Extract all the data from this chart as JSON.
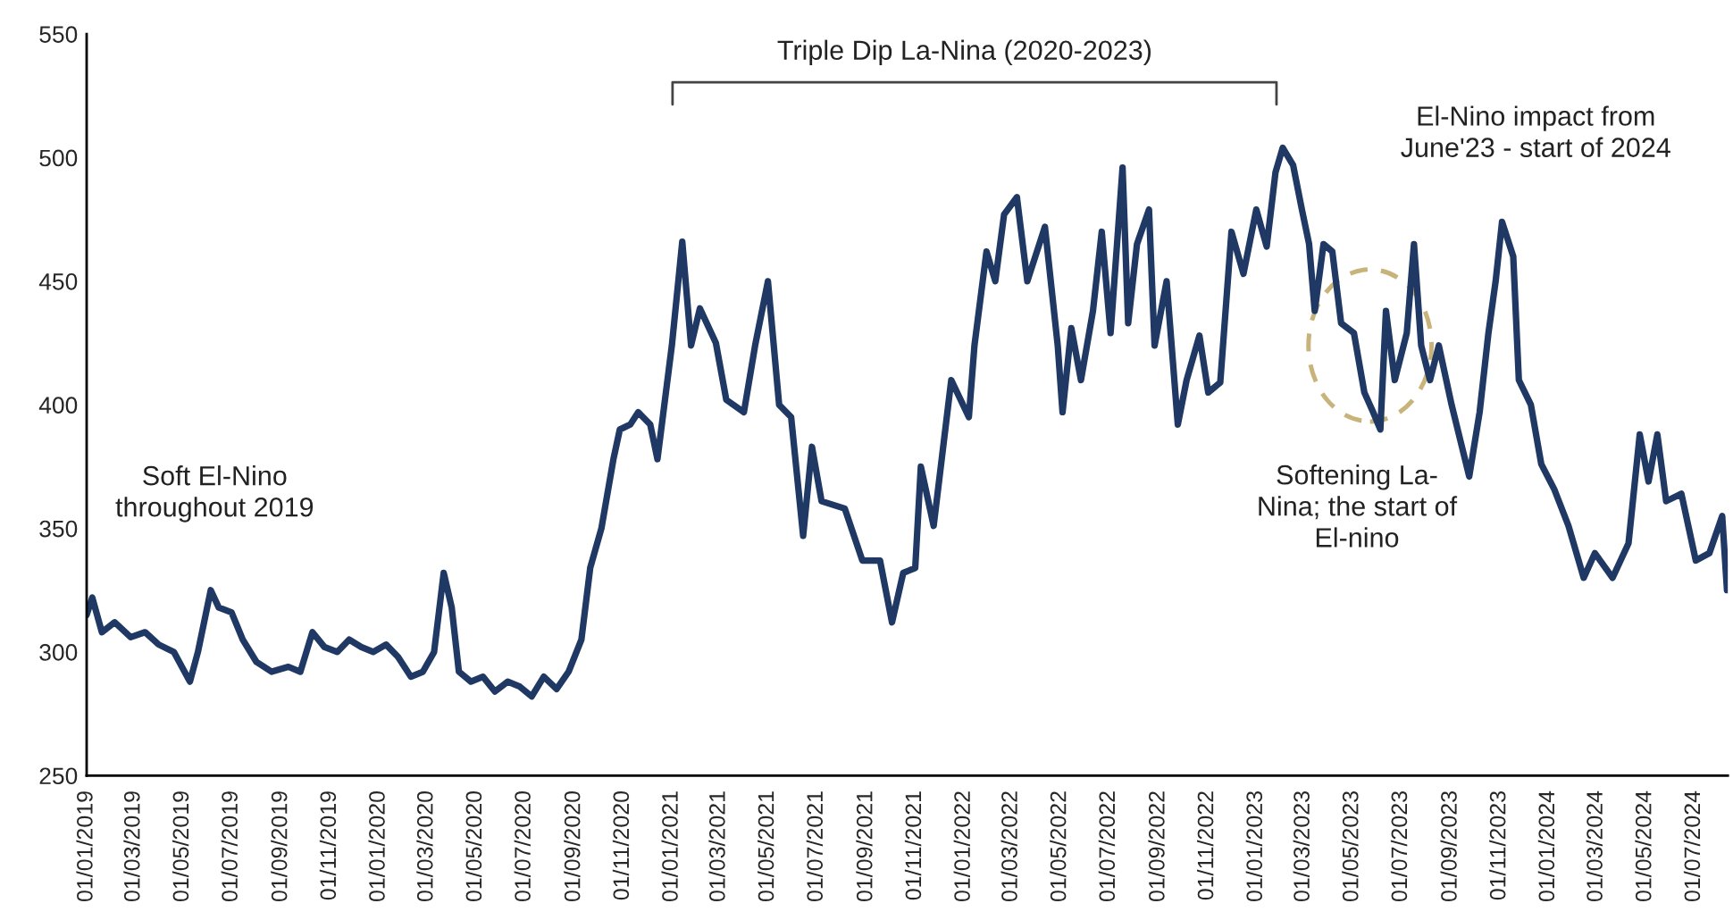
{
  "chart_data": {
    "type": "line",
    "x": [
      "2019-01-01",
      "2019-01-08",
      "2019-01-20",
      "2019-02-05",
      "2019-02-25",
      "2019-03-15",
      "2019-04-01",
      "2019-04-20",
      "2019-05-10",
      "2019-05-20",
      "2019-06-05",
      "2019-06-15",
      "2019-07-01",
      "2019-07-15",
      "2019-08-01",
      "2019-08-20",
      "2019-09-10",
      "2019-09-25",
      "2019-10-10",
      "2019-10-25",
      "2019-11-10",
      "2019-11-25",
      "2019-12-10",
      "2019-12-25",
      "2020-01-10",
      "2020-01-25",
      "2020-02-10",
      "2020-02-25",
      "2020-03-10",
      "2020-03-22",
      "2020-04-01",
      "2020-04-10",
      "2020-04-25",
      "2020-05-10",
      "2020-05-25",
      "2020-06-10",
      "2020-06-25",
      "2020-07-10",
      "2020-07-25",
      "2020-08-10",
      "2020-08-25",
      "2020-09-10",
      "2020-09-21",
      "2020-10-05",
      "2020-10-20",
      "2020-10-28",
      "2020-11-10",
      "2020-11-20",
      "2020-12-05",
      "2020-12-14",
      "2021-01-01",
      "2021-01-14",
      "2021-01-25",
      "2021-02-05",
      "2021-02-25",
      "2021-03-10",
      "2021-04-01",
      "2021-04-15",
      "2021-05-01",
      "2021-05-15",
      "2021-05-30",
      "2021-06-14",
      "2021-06-25",
      "2021-07-07",
      "2021-08-05",
      "2021-08-27",
      "2021-09-18",
      "2021-10-03",
      "2021-10-17",
      "2021-11-01",
      "2021-11-08",
      "2021-11-24",
      "2021-12-16",
      "2022-01-07",
      "2022-01-14",
      "2022-01-29",
      "2022-02-09",
      "2022-02-20",
      "2022-03-08",
      "2022-03-21",
      "2022-04-12",
      "2022-04-28",
      "2022-05-04",
      "2022-05-15",
      "2022-05-27",
      "2022-06-11",
      "2022-06-22",
      "2022-07-03",
      "2022-07-18",
      "2022-07-25",
      "2022-08-05",
      "2022-08-20",
      "2022-08-27",
      "2022-09-11",
      "2022-09-25",
      "2022-10-06",
      "2022-10-22",
      "2022-11-02",
      "2022-11-17",
      "2022-12-01",
      "2022-12-16",
      "2023-01-01",
      "2023-01-14",
      "2023-01-25",
      "2023-02-03",
      "2023-02-16",
      "2023-02-27",
      "2023-03-08",
      "2023-03-15",
      "2023-03-26",
      "2023-04-06",
      "2023-04-17",
      "2023-05-03",
      "2023-05-16",
      "2023-05-27",
      "2023-06-05",
      "2023-06-12",
      "2023-06-23",
      "2023-07-08",
      "2023-07-17",
      "2023-07-26",
      "2023-08-06",
      "2023-08-17",
      "2023-09-02",
      "2023-09-24",
      "2023-10-07",
      "2023-10-18",
      "2023-10-27",
      "2023-11-04",
      "2023-11-18",
      "2023-11-25",
      "2023-12-10",
      "2023-12-23",
      "2024-01-08",
      "2024-01-26",
      "2024-02-14",
      "2024-02-28",
      "2024-03-21",
      "2024-04-10",
      "2024-04-24",
      "2024-05-05",
      "2024-05-16",
      "2024-05-27",
      "2024-06-15",
      "2024-07-03",
      "2024-07-20",
      "2024-08-05",
      "2024-08-11"
    ],
    "series": [
      {
        "color": "#1f3864",
        "values": [
          315,
          322,
          308,
          312,
          306,
          308,
          303,
          300,
          288,
          300,
          325,
          318,
          316,
          305,
          296,
          292,
          294,
          292,
          308,
          302,
          300,
          305,
          302,
          300,
          303,
          298,
          290,
          292,
          300,
          332,
          318,
          292,
          288,
          290,
          284,
          288,
          286,
          282,
          290,
          285,
          292,
          305,
          334,
          350,
          378,
          390,
          392,
          397,
          392,
          378,
          424,
          466,
          424,
          439,
          425,
          402,
          397,
          424,
          450,
          400,
          395,
          347,
          383,
          361,
          358,
          337,
          337,
          312,
          332,
          334,
          375,
          351,
          410,
          395,
          424,
          462,
          450,
          477,
          484,
          450,
          472,
          424,
          397,
          431,
          410,
          438,
          470,
          429,
          496,
          433,
          465,
          479,
          424,
          450,
          392,
          410,
          428,
          405,
          409,
          470,
          453,
          479,
          464,
          494,
          504,
          497,
          479,
          465,
          438,
          465,
          462,
          433,
          429,
          405,
          397,
          390,
          438,
          410,
          429,
          465,
          424,
          410,
          424,
          400,
          371,
          397,
          429,
          450,
          474,
          460,
          410,
          400,
          376,
          366,
          351,
          330,
          340,
          330,
          344,
          388,
          369,
          388,
          361,
          364,
          337,
          340,
          355,
          325
        ]
      }
    ],
    "xlim": [
      "2019-01-01",
      "2024-08-12"
    ],
    "xticks": [
      {
        "value": "2019-01-01",
        "label": "01/01/2019"
      },
      {
        "value": "2019-03-01",
        "label": "01/03/2019"
      },
      {
        "value": "2019-05-01",
        "label": "01/05/2019"
      },
      {
        "value": "2019-07-01",
        "label": "01/07/2019"
      },
      {
        "value": "2019-09-01",
        "label": "01/09/2019"
      },
      {
        "value": "2019-11-01",
        "label": "01/11/2019"
      },
      {
        "value": "2020-01-01",
        "label": "01/01/2020"
      },
      {
        "value": "2020-03-01",
        "label": "01/03/2020"
      },
      {
        "value": "2020-05-01",
        "label": "01/05/2020"
      },
      {
        "value": "2020-07-01",
        "label": "01/07/2020"
      },
      {
        "value": "2020-09-01",
        "label": "01/09/2020"
      },
      {
        "value": "2020-11-01",
        "label": "01/11/2020"
      },
      {
        "value": "2021-01-01",
        "label": "01/01/2021"
      },
      {
        "value": "2021-03-01",
        "label": "01/03/2021"
      },
      {
        "value": "2021-05-01",
        "label": "01/05/2021"
      },
      {
        "value": "2021-07-01",
        "label": "01/07/2021"
      },
      {
        "value": "2021-09-01",
        "label": "01/09/2021"
      },
      {
        "value": "2021-11-01",
        "label": "01/11/2021"
      },
      {
        "value": "2022-01-01",
        "label": "01/01/2022"
      },
      {
        "value": "2022-03-01",
        "label": "01/03/2022"
      },
      {
        "value": "2022-05-01",
        "label": "01/05/2022"
      },
      {
        "value": "2022-07-01",
        "label": "01/07/2022"
      },
      {
        "value": "2022-09-01",
        "label": "01/09/2022"
      },
      {
        "value": "2022-11-01",
        "label": "01/11/2022"
      },
      {
        "value": "2023-01-01",
        "label": "01/01/2023"
      },
      {
        "value": "2023-03-01",
        "label": "01/03/2023"
      },
      {
        "value": "2023-05-01",
        "label": "01/05/2023"
      },
      {
        "value": "2023-07-01",
        "label": "01/07/2023"
      },
      {
        "value": "2023-09-01",
        "label": "01/09/2023"
      },
      {
        "value": "2023-11-01",
        "label": "01/11/2023"
      },
      {
        "value": "2024-01-01",
        "label": "01/01/2024"
      },
      {
        "value": "2024-03-01",
        "label": "01/03/2024"
      },
      {
        "value": "2024-05-01",
        "label": "01/05/2024"
      },
      {
        "value": "2024-07-01",
        "label": "01/07/2024"
      }
    ],
    "ylim": [
      250,
      550
    ],
    "yticks": [
      250,
      300,
      350,
      400,
      450,
      500,
      550
    ],
    "grid": false,
    "legend": false,
    "marker": "none",
    "line_style": "solid",
    "annotations": [
      "Soft El-Nino\nthroughout 2019",
      "Triple Dip La-Nina (2020-2023)",
      "El-Nino impact from\nJune'23 - start of 2024",
      "Softening La-\nNina; the start of\nEl-nino"
    ]
  }
}
